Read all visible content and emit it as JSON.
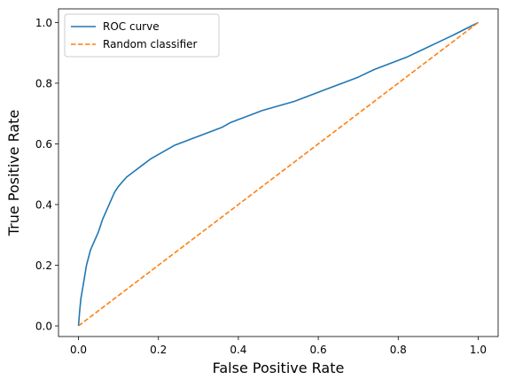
{
  "chart_data": {
    "type": "line",
    "title": "",
    "xlabel": "False Positive Rate",
    "ylabel": "True Positive Rate",
    "xlim": [
      -0.05,
      1.05
    ],
    "ylim": [
      -0.035,
      1.045
    ],
    "xticks": [
      0.0,
      0.2,
      0.4,
      0.6,
      0.8,
      1.0
    ],
    "yticks": [
      0.0,
      0.2,
      0.4,
      0.6,
      0.8,
      1.0
    ],
    "xtick_labels": [
      "0.0",
      "0.2",
      "0.4",
      "0.6",
      "0.8",
      "1.0"
    ],
    "ytick_labels": [
      "0.0",
      "0.2",
      "0.4",
      "0.6",
      "0.8",
      "1.0"
    ],
    "grid": false,
    "legend_position": "top-left",
    "series": [
      {
        "name": "ROC curve",
        "color": "#1f77b4",
        "style": "solid",
        "x": [
          0.0,
          0.003,
          0.006,
          0.01,
          0.015,
          0.02,
          0.03,
          0.04,
          0.05,
          0.06,
          0.07,
          0.08,
          0.09,
          0.1,
          0.12,
          0.14,
          0.16,
          0.18,
          0.2,
          0.22,
          0.24,
          0.26,
          0.28,
          0.3,
          0.33,
          0.36,
          0.38,
          0.4,
          0.42,
          0.44,
          0.46,
          0.5,
          0.54,
          0.58,
          0.62,
          0.66,
          0.7,
          0.74,
          0.78,
          0.82,
          0.86,
          0.9,
          0.94,
          0.97,
          1.0
        ],
        "y": [
          0.0,
          0.05,
          0.09,
          0.12,
          0.16,
          0.2,
          0.25,
          0.28,
          0.31,
          0.35,
          0.38,
          0.41,
          0.44,
          0.46,
          0.49,
          0.51,
          0.53,
          0.55,
          0.565,
          0.58,
          0.595,
          0.605,
          0.615,
          0.625,
          0.64,
          0.655,
          0.67,
          0.68,
          0.69,
          0.7,
          0.71,
          0.725,
          0.74,
          0.76,
          0.78,
          0.8,
          0.82,
          0.845,
          0.865,
          0.885,
          0.91,
          0.935,
          0.96,
          0.98,
          1.0
        ]
      },
      {
        "name": "Random classifier",
        "color": "#ff7f0e",
        "style": "dashed",
        "x": [
          0.0,
          1.0
        ],
        "y": [
          0.0,
          1.0
        ]
      }
    ]
  }
}
